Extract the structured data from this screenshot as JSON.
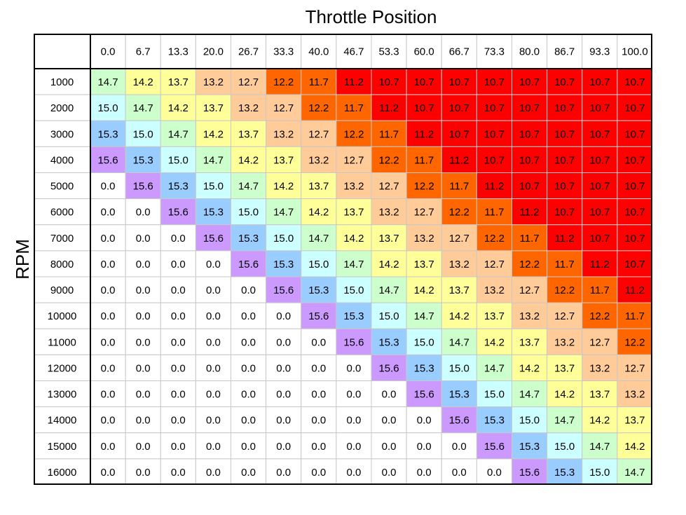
{
  "chart_data": {
    "type": "heatmap",
    "title": "Throttle Position",
    "ylabel": "RPM",
    "x_label_title": "Throttle Position",
    "x": [
      "0.0",
      "6.7",
      "13.3",
      "20.0",
      "26.7",
      "33.3",
      "40.0",
      "46.7",
      "53.3",
      "60.0",
      "66.7",
      "73.3",
      "80.0",
      "86.7",
      "93.3",
      "100.0"
    ],
    "y": [
      "1000",
      "2000",
      "3000",
      "4000",
      "5000",
      "6000",
      "7000",
      "8000",
      "9000",
      "10000",
      "11000",
      "12000",
      "13000",
      "14000",
      "15000",
      "16000"
    ],
    "values": [
      [
        14.7,
        14.2,
        13.7,
        13.2,
        12.7,
        12.2,
        11.7,
        11.2,
        10.7,
        10.7,
        10.7,
        10.7,
        10.7,
        10.7,
        10.7,
        10.7
      ],
      [
        15.0,
        14.7,
        14.2,
        13.7,
        13.2,
        12.7,
        12.2,
        11.7,
        11.2,
        10.7,
        10.7,
        10.7,
        10.7,
        10.7,
        10.7,
        10.7
      ],
      [
        15.3,
        15.0,
        14.7,
        14.2,
        13.7,
        13.2,
        12.7,
        12.2,
        11.7,
        11.2,
        10.7,
        10.7,
        10.7,
        10.7,
        10.7,
        10.7
      ],
      [
        15.6,
        15.3,
        15.0,
        14.7,
        14.2,
        13.7,
        13.2,
        12.7,
        12.2,
        11.7,
        11.2,
        10.7,
        10.7,
        10.7,
        10.7,
        10.7
      ],
      [
        0.0,
        15.6,
        15.3,
        15.0,
        14.7,
        14.2,
        13.7,
        13.2,
        12.7,
        12.2,
        11.7,
        11.2,
        10.7,
        10.7,
        10.7,
        10.7
      ],
      [
        0.0,
        0.0,
        15.6,
        15.3,
        15.0,
        14.7,
        14.2,
        13.7,
        13.2,
        12.7,
        12.2,
        11.7,
        11.2,
        10.7,
        10.7,
        10.7
      ],
      [
        0.0,
        0.0,
        0.0,
        15.6,
        15.3,
        15.0,
        14.7,
        14.2,
        13.7,
        13.2,
        12.7,
        12.2,
        11.7,
        11.2,
        10.7,
        10.7
      ],
      [
        0.0,
        0.0,
        0.0,
        0.0,
        15.6,
        15.3,
        15.0,
        14.7,
        14.2,
        13.7,
        13.2,
        12.7,
        12.2,
        11.7,
        11.2,
        10.7
      ],
      [
        0.0,
        0.0,
        0.0,
        0.0,
        0.0,
        15.6,
        15.3,
        15.0,
        14.7,
        14.2,
        13.7,
        13.2,
        12.7,
        12.2,
        11.7,
        11.2
      ],
      [
        0.0,
        0.0,
        0.0,
        0.0,
        0.0,
        0.0,
        15.6,
        15.3,
        15.0,
        14.7,
        14.2,
        13.7,
        13.2,
        12.7,
        12.2,
        11.7
      ],
      [
        0.0,
        0.0,
        0.0,
        0.0,
        0.0,
        0.0,
        0.0,
        15.6,
        15.3,
        15.0,
        14.7,
        14.2,
        13.7,
        13.2,
        12.7,
        12.2
      ],
      [
        0.0,
        0.0,
        0.0,
        0.0,
        0.0,
        0.0,
        0.0,
        0.0,
        15.6,
        15.3,
        15.0,
        14.7,
        14.2,
        13.7,
        13.2,
        12.7
      ],
      [
        0.0,
        0.0,
        0.0,
        0.0,
        0.0,
        0.0,
        0.0,
        0.0,
        0.0,
        15.6,
        15.3,
        15.0,
        14.7,
        14.2,
        13.7,
        13.2
      ],
      [
        0.0,
        0.0,
        0.0,
        0.0,
        0.0,
        0.0,
        0.0,
        0.0,
        0.0,
        0.0,
        15.6,
        15.3,
        15.0,
        14.7,
        14.2,
        13.7
      ],
      [
        0.0,
        0.0,
        0.0,
        0.0,
        0.0,
        0.0,
        0.0,
        0.0,
        0.0,
        0.0,
        0.0,
        15.6,
        15.3,
        15.0,
        14.7,
        14.2
      ],
      [
        0.0,
        0.0,
        0.0,
        0.0,
        0.0,
        0.0,
        0.0,
        0.0,
        0.0,
        0.0,
        0.0,
        0.0,
        15.6,
        15.3,
        15.0,
        14.7
      ]
    ],
    "color_map": {
      "0.0": "#ffffff",
      "10.7": "#ff0000",
      "11.2": "#ff0000",
      "11.7": "#ff6600",
      "12.2": "#ff6600",
      "12.7": "#ffcc99",
      "13.2": "#ffcc99",
      "13.7": "#ffff99",
      "14.2": "#ffff99",
      "14.7": "#ccffcc",
      "15.0": "#ccffff",
      "15.3": "#99ccff",
      "15.6": "#cc99ff"
    },
    "grid": true
  }
}
